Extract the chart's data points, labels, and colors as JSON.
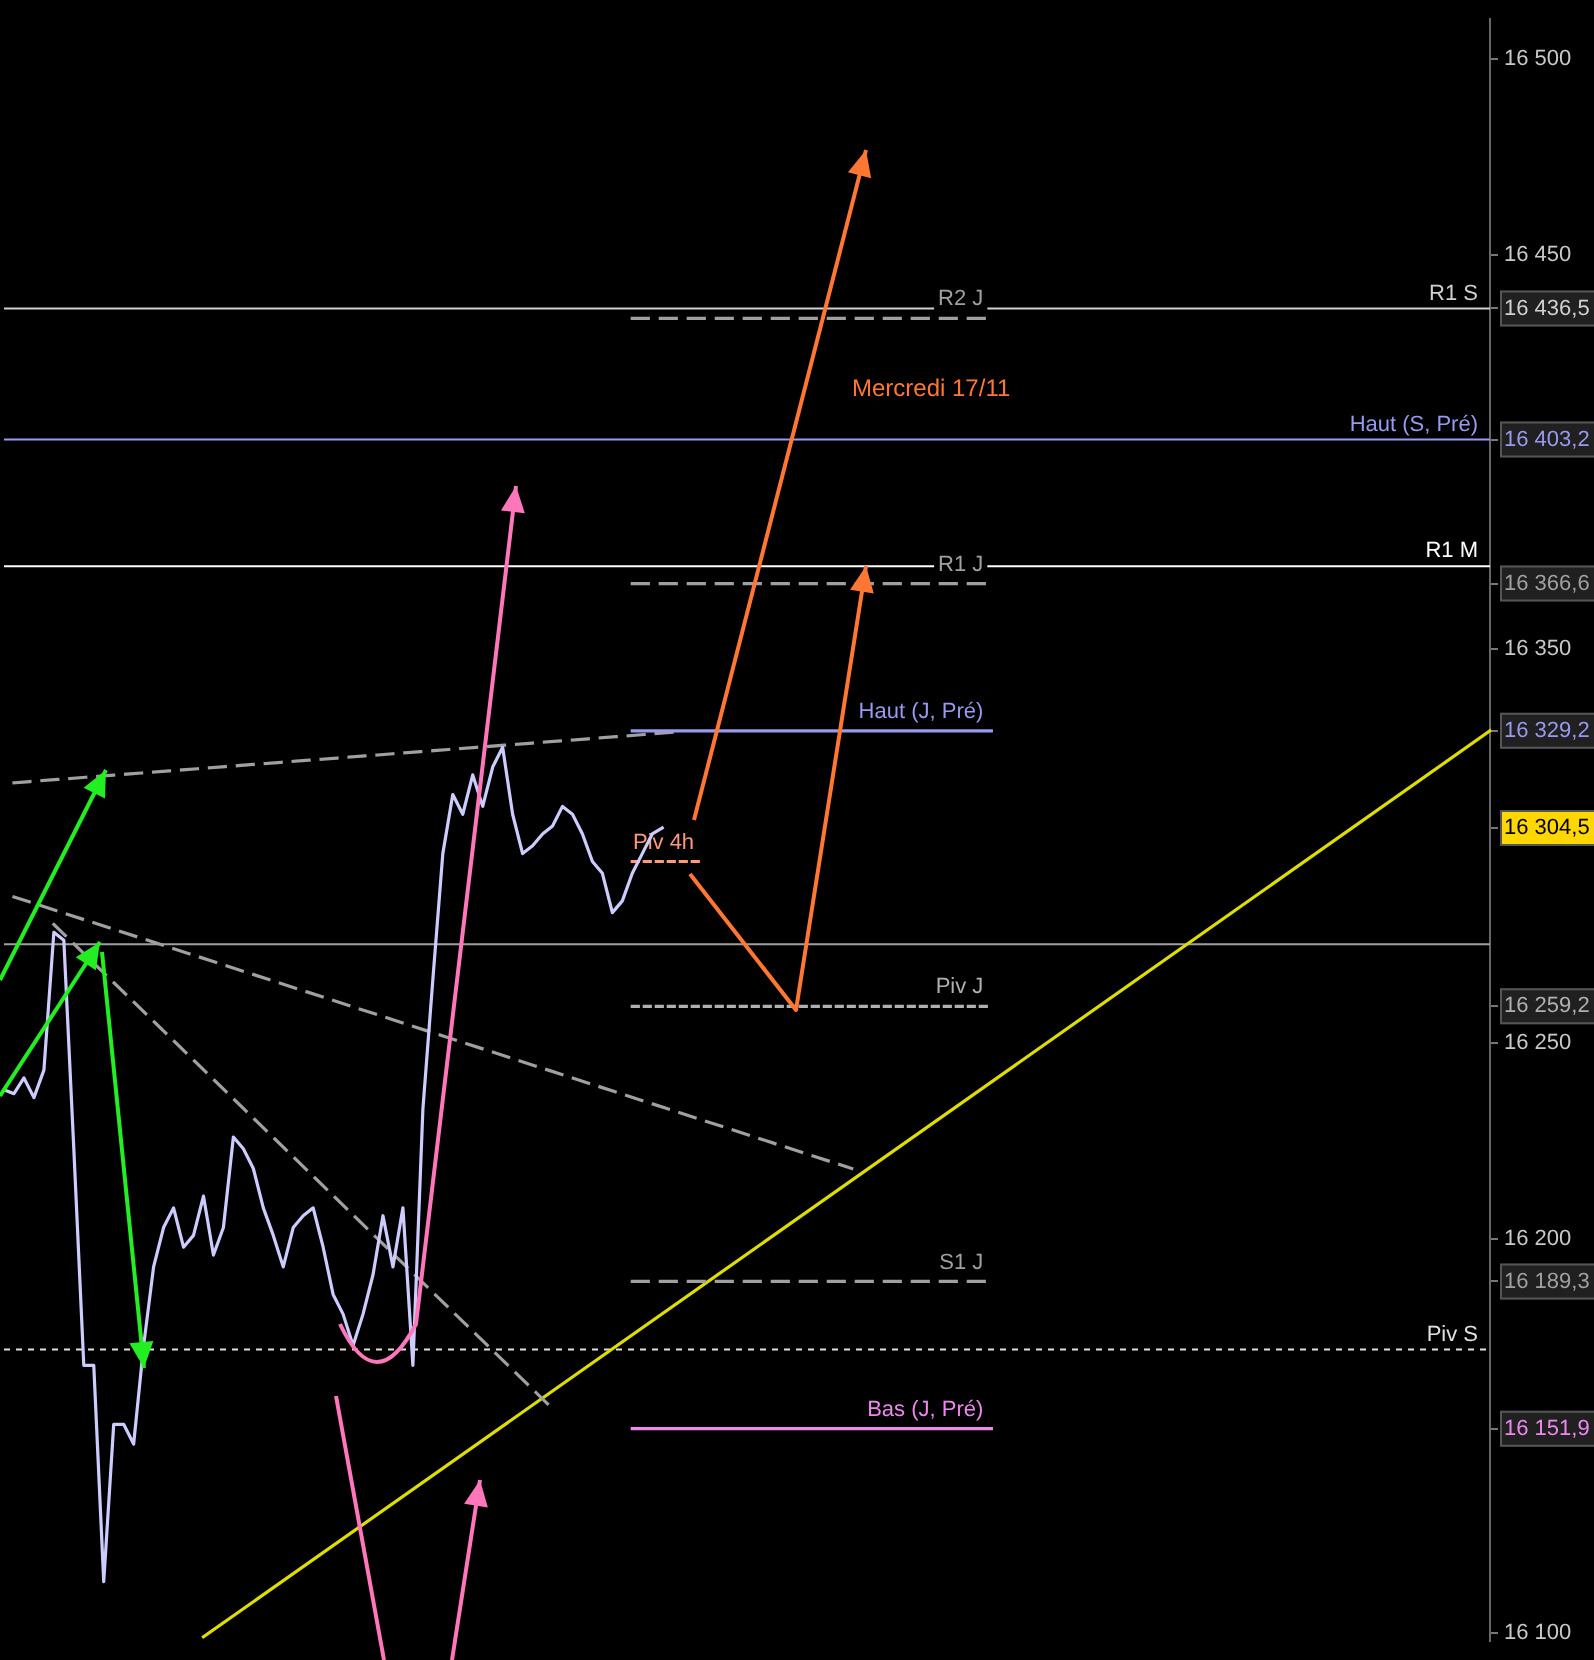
{
  "chart_data": {
    "type": "line",
    "categories": [
      null,
      null,
      null,
      null,
      null,
      null,
      null,
      null,
      null,
      null,
      null,
      null,
      null,
      null,
      null,
      null,
      null,
      null,
      null,
      null,
      null,
      null,
      null,
      null,
      null,
      null,
      null,
      null,
      null,
      null,
      null,
      null,
      null,
      null,
      null,
      null,
      null,
      null,
      null,
      null,
      null,
      null,
      null,
      null,
      null,
      null,
      null,
      null,
      null,
      null,
      null,
      null,
      null,
      null,
      null,
      null,
      null,
      null,
      null,
      null,
      null,
      null,
      null,
      null,
      null,
      null,
      null,
      null,
      null,
      null,
      null,
      null,
      null,
      null,
      null,
      null,
      null,
      null,
      null,
      null,
      null,
      null,
      null,
      null,
      null,
      null,
      null,
      null,
      null,
      null,
      null,
      null,
      null,
      null,
      null,
      null,
      null,
      null,
      null,
      null,
      null,
      null,
      null,
      null,
      null,
      null,
      null,
      null,
      null,
      null,
      null,
      null,
      null,
      null,
      null,
      null,
      null,
      null,
      null,
      null,
      null,
      null,
      null,
      null,
      null,
      null,
      null,
      null,
      null,
      null,
      null,
      null,
      null,
      null,
      null,
      null,
      null,
      null,
      null,
      null,
      null,
      null,
      null,
      null,
      null,
      null,
      null,
      null,
      null,
      null
    ],
    "ylim": [
      16098,
      16510
    ],
    "yticks": [
      {
        "value": 16100,
        "label": "16 100"
      },
      {
        "value": 16151.9,
        "label": "16 151,9"
      },
      {
        "value": 16189.3,
        "label": "16 189,3"
      },
      {
        "value": 16200,
        "label": "16 200"
      },
      {
        "value": 16250,
        "label": "16 250"
      },
      {
        "value": 16259.2,
        "label": "16 259,2"
      },
      {
        "value": 16304.5,
        "label": "16 304,5"
      },
      {
        "value": 16329.2,
        "label": "16 329,2"
      },
      {
        "value": 16350,
        "label": "16 350"
      },
      {
        "value": 16366.6,
        "label": "16 366,6"
      },
      {
        "value": 16403.2,
        "label": "16 403,2"
      },
      {
        "value": 16436.5,
        "label": "16 436,5"
      },
      {
        "value": 16450,
        "label": "16 450"
      },
      {
        "value": 16500,
        "label": "16 500"
      }
    ],
    "tick_labels": "y",
    "grid": false,
    "legend": false,
    "marker": "none",
    "annotations": [
      "Mercredi 17/11"
    ],
    "ref_lines": [
      {
        "axis": "y",
        "value": 16436.5,
        "label": "R1 S",
        "color": "#d0d0d0"
      },
      {
        "axis": "y",
        "value": 16403.2,
        "label": "Haut (S, Pré)",
        "color": "#9999ee"
      },
      {
        "axis": "y",
        "value": 16371,
        "label": "R1 M",
        "color": "#ffffff"
      },
      {
        "axis": "y",
        "value": 16275,
        "label": null,
        "color": "#a0a0a0"
      },
      {
        "axis": "y",
        "value": 16172,
        "label": "Piv S",
        "color": "#e0e0e0",
        "line_style": "dotted"
      }
    ],
    "series": [
      {
        "color": "#ccccff",
        "line_style": "solid",
        "values": [
          16238,
          16237,
          16241,
          16236,
          16243,
          16278,
          16276,
          16223,
          16168,
          16168,
          16113,
          16153,
          16153,
          16148,
          16173,
          16193,
          16203,
          16208,
          16198,
          16201,
          16211,
          16196,
          16203,
          16226,
          16223,
          16218,
          16208,
          16201,
          16193,
          16203,
          16206,
          16208,
          16198,
          16186,
          16181,
          16173,
          16181,
          16191,
          16206,
          16193,
          16208,
          16168,
          16233,
          16266,
          16298,
          16313,
          16308,
          16318,
          16310,
          16320,
          16325,
          16308,
          16298,
          16300,
          16303,
          16305,
          16310,
          16308,
          16303,
          16296,
          16293,
          16283,
          16286,
          16293,
          16298,
          16303,
          16304.5,
          null,
          null,
          null,
          null,
          null,
          null,
          null,
          null,
          null,
          null,
          null,
          null,
          null,
          null,
          null,
          null,
          null,
          null,
          null,
          null,
          null,
          null,
          null,
          null,
          null,
          null,
          null,
          null,
          null,
          null,
          null,
          null,
          null,
          null,
          null,
          null,
          null,
          null,
          null,
          null,
          null,
          null,
          null,
          null,
          null,
          null,
          null,
          null,
          null,
          null,
          null,
          null,
          null,
          null,
          null,
          null,
          null,
          null,
          null,
          null,
          null,
          null,
          null,
          null,
          null,
          null,
          null,
          null,
          null,
          null,
          null,
          null,
          null,
          null,
          null,
          null,
          null,
          null,
          null,
          null,
          null,
          null,
          null
        ]
      },
      {
        "name": "R2 J",
        "color": "#a0a0a0",
        "line_style": "dashed",
        "values": [
          null,
          null,
          null,
          null,
          null,
          null,
          null,
          null,
          null,
          null,
          null,
          null,
          null,
          null,
          null,
          null,
          null,
          null,
          null,
          null,
          null,
          null,
          null,
          null,
          null,
          null,
          null,
          null,
          null,
          null,
          null,
          null,
          null,
          null,
          null,
          null,
          null,
          null,
          null,
          null,
          null,
          null,
          null,
          null,
          null,
          null,
          null,
          null,
          null,
          null,
          null,
          null,
          null,
          null,
          null,
          null,
          null,
          null,
          null,
          null,
          null,
          null,
          null,
          16434,
          null,
          null,
          null,
          null,
          null,
          null,
          null,
          null,
          null,
          null,
          null,
          null,
          null,
          null,
          null,
          null,
          null,
          null,
          null,
          null,
          null,
          null,
          null,
          null,
          null,
          null,
          null,
          null,
          null,
          null,
          null,
          null,
          null,
          null,
          null,
          16434,
          null,
          null,
          null,
          null,
          null,
          null,
          null,
          null,
          null,
          null,
          null,
          null,
          null,
          null,
          null,
          null,
          null,
          null,
          null,
          null,
          null,
          null,
          null,
          null,
          null,
          null,
          null,
          null,
          null,
          null,
          null,
          null,
          null,
          null,
          null,
          null,
          null,
          null,
          null,
          null,
          null,
          null,
          null,
          null,
          null,
          null,
          null,
          null,
          null,
          null
        ]
      },
      {
        "name": "R1 J",
        "color": "#a0a0a0",
        "line_style": "dashed",
        "values": [
          null,
          null,
          null,
          null,
          null,
          null,
          null,
          null,
          null,
          null,
          null,
          null,
          null,
          null,
          null,
          null,
          null,
          null,
          null,
          null,
          null,
          null,
          null,
          null,
          null,
          null,
          null,
          null,
          null,
          null,
          null,
          null,
          null,
          null,
          null,
          null,
          null,
          null,
          null,
          null,
          null,
          null,
          null,
          null,
          null,
          null,
          null,
          null,
          null,
          null,
          null,
          null,
          null,
          null,
          null,
          null,
          null,
          null,
          null,
          null,
          null,
          null,
          null,
          16366.6,
          null,
          null,
          null,
          null,
          null,
          null,
          null,
          null,
          null,
          null,
          null,
          null,
          null,
          null,
          null,
          null,
          null,
          null,
          null,
          null,
          null,
          null,
          null,
          null,
          null,
          null,
          null,
          null,
          null,
          null,
          null,
          null,
          null,
          null,
          null,
          16366.6,
          null,
          null,
          null,
          null,
          null,
          null,
          null,
          null,
          null,
          null,
          null,
          null,
          null,
          null,
          null,
          null,
          null,
          null,
          null,
          null,
          null,
          null,
          null,
          null,
          null,
          null,
          null,
          null,
          null,
          null,
          null,
          null,
          null,
          null,
          null,
          null,
          null,
          null,
          null,
          null,
          null,
          null,
          null,
          null,
          null,
          null,
          null,
          null,
          null,
          null
        ]
      },
      {
        "name": "Haut (J, Pré)",
        "color": "#9999ee",
        "line_style": "solid",
        "values": [
          null,
          null,
          null,
          null,
          null,
          null,
          null,
          null,
          null,
          null,
          null,
          null,
          null,
          null,
          null,
          null,
          null,
          null,
          null,
          null,
          null,
          null,
          null,
          null,
          null,
          null,
          null,
          null,
          null,
          null,
          null,
          null,
          null,
          null,
          null,
          null,
          null,
          null,
          null,
          null,
          null,
          null,
          null,
          null,
          null,
          null,
          null,
          null,
          null,
          null,
          null,
          null,
          null,
          null,
          null,
          null,
          null,
          null,
          null,
          null,
          null,
          null,
          null,
          16329.2,
          null,
          null,
          null,
          null,
          null,
          null,
          null,
          null,
          null,
          null,
          null,
          null,
          null,
          null,
          null,
          null,
          null,
          null,
          null,
          null,
          null,
          null,
          null,
          null,
          null,
          null,
          null,
          null,
          null,
          null,
          null,
          null,
          null,
          null,
          null,
          16329.2,
          null,
          null,
          null,
          null,
          null,
          null,
          null,
          null,
          null,
          null,
          null,
          null,
          null,
          null,
          null,
          null,
          null,
          null,
          null,
          null,
          null,
          null,
          null,
          null,
          null,
          null,
          null,
          null,
          null,
          null,
          null,
          null,
          null,
          null,
          null,
          null,
          null,
          null,
          null,
          null,
          null,
          null,
          null,
          null,
          null,
          null,
          null,
          null,
          null,
          null
        ]
      },
      {
        "name": "Piv J",
        "color": "#b0b0b0",
        "line_style": "dotted",
        "values": [
          null,
          null,
          null,
          null,
          null,
          null,
          null,
          null,
          null,
          null,
          null,
          null,
          null,
          null,
          null,
          null,
          null,
          null,
          null,
          null,
          null,
          null,
          null,
          null,
          null,
          null,
          null,
          null,
          null,
          null,
          null,
          null,
          null,
          null,
          null,
          null,
          null,
          null,
          null,
          null,
          null,
          null,
          null,
          null,
          null,
          null,
          null,
          null,
          null,
          null,
          null,
          null,
          null,
          null,
          null,
          null,
          null,
          null,
          null,
          null,
          null,
          null,
          null,
          16259.2,
          null,
          null,
          null,
          null,
          null,
          null,
          null,
          null,
          null,
          null,
          null,
          null,
          null,
          null,
          null,
          null,
          null,
          null,
          null,
          null,
          null,
          null,
          null,
          null,
          null,
          null,
          null,
          null,
          null,
          null,
          null,
          null,
          null,
          null,
          null,
          16259.2,
          null,
          null,
          null,
          null,
          null,
          null,
          null,
          null,
          null,
          null,
          null,
          null,
          null,
          null,
          null,
          null,
          null,
          null,
          null,
          null,
          null,
          null,
          null,
          null,
          null,
          null,
          null,
          null,
          null,
          null,
          null,
          null,
          null,
          null,
          null,
          null,
          null,
          null,
          null,
          null,
          null,
          null,
          null,
          null,
          null,
          null,
          null,
          null,
          null,
          null
        ]
      },
      {
        "name": "S1 J",
        "color": "#a0a0a0",
        "line_style": "dashed",
        "values": [
          null,
          null,
          null,
          null,
          null,
          null,
          null,
          null,
          null,
          null,
          null,
          null,
          null,
          null,
          null,
          null,
          null,
          null,
          null,
          null,
          null,
          null,
          null,
          null,
          null,
          null,
          null,
          null,
          null,
          null,
          null,
          null,
          null,
          null,
          null,
          null,
          null,
          null,
          null,
          null,
          null,
          null,
          null,
          null,
          null,
          null,
          null,
          null,
          null,
          null,
          null,
          null,
          null,
          null,
          null,
          null,
          null,
          null,
          null,
          null,
          null,
          null,
          null,
          16189.3,
          null,
          null,
          null,
          null,
          null,
          null,
          null,
          null,
          null,
          null,
          null,
          null,
          null,
          null,
          null,
          null,
          null,
          null,
          null,
          null,
          null,
          null,
          null,
          null,
          null,
          null,
          null,
          null,
          null,
          null,
          null,
          null,
          null,
          null,
          null,
          16189.3,
          null,
          null,
          null,
          null,
          null,
          null,
          null,
          null,
          null,
          null,
          null,
          null,
          null,
          null,
          null,
          null,
          null,
          null,
          null,
          null,
          null,
          null,
          null,
          null,
          null,
          null,
          null,
          null,
          null,
          null,
          null,
          null,
          null,
          null,
          null,
          null,
          null,
          null,
          null,
          null,
          null,
          null,
          null,
          null,
          null,
          null,
          null,
          null,
          null,
          null
        ]
      },
      {
        "name": "Bas (J, Pré)",
        "color": "#ee88ee",
        "line_style": "solid",
        "values": [
          null,
          null,
          null,
          null,
          null,
          null,
          null,
          null,
          null,
          null,
          null,
          null,
          null,
          null,
          null,
          null,
          null,
          null,
          null,
          null,
          null,
          null,
          null,
          null,
          null,
          null,
          null,
          null,
          null,
          null,
          null,
          null,
          null,
          null,
          null,
          null,
          null,
          null,
          null,
          null,
          null,
          null,
          null,
          null,
          null,
          null,
          null,
          null,
          null,
          null,
          null,
          null,
          null,
          null,
          null,
          null,
          null,
          null,
          null,
          null,
          null,
          null,
          null,
          16151.9,
          null,
          null,
          null,
          null,
          null,
          null,
          null,
          null,
          null,
          null,
          null,
          null,
          null,
          null,
          null,
          null,
          null,
          null,
          null,
          null,
          null,
          null,
          null,
          null,
          null,
          null,
          null,
          null,
          null,
          null,
          null,
          null,
          null,
          null,
          null,
          16151.9,
          null,
          null,
          null,
          null,
          null,
          null,
          null,
          null,
          null,
          null,
          null,
          null,
          null,
          null,
          null,
          null,
          null,
          null,
          null,
          null,
          null,
          null,
          null,
          null,
          null,
          null,
          null,
          null,
          null,
          null,
          null,
          null,
          null,
          null,
          null,
          null,
          null,
          null,
          null,
          null,
          null,
          null,
          null,
          null,
          null,
          null,
          null,
          null,
          null,
          null
        ]
      },
      {
        "name": "Piv 4h",
        "color": "#ff9977",
        "line_style": "dotted",
        "values": [
          null,
          null,
          null,
          null,
          null,
          null,
          null,
          null,
          null,
          null,
          null,
          null,
          null,
          null,
          null,
          null,
          null,
          null,
          null,
          null,
          null,
          null,
          null,
          null,
          null,
          null,
          null,
          null,
          null,
          null,
          null,
          null,
          null,
          null,
          null,
          null,
          null,
          null,
          null,
          null,
          null,
          null,
          null,
          null,
          null,
          null,
          null,
          null,
          null,
          null,
          null,
          null,
          null,
          null,
          null,
          null,
          null,
          null,
          null,
          null,
          null,
          null,
          null,
          16296,
          null,
          null,
          null,
          null,
          null,
          null,
          16296,
          null,
          null,
          null,
          null,
          null,
          null,
          null,
          null,
          null,
          null,
          null,
          null,
          null,
          null,
          null,
          null,
          null,
          null,
          null,
          null,
          null,
          null,
          null,
          null,
          null,
          null,
          null,
          null,
          null,
          null,
          null,
          null,
          null,
          null,
          null,
          null,
          null,
          null,
          null,
          null,
          null,
          null,
          null,
          null,
          null,
          null,
          null,
          null,
          null,
          null,
          null,
          null,
          null,
          null,
          null,
          null,
          null,
          null,
          null,
          null,
          null,
          null,
          null,
          null,
          null,
          null,
          null,
          null,
          null,
          null,
          null,
          null,
          null,
          null,
          null,
          null,
          null,
          null,
          null
        ]
      },
      {
        "color": "#a0a0a0",
        "line_style": "dashed",
        "values": [
          null,
          16316,
          null,
          null,
          null,
          null,
          null,
          null,
          null,
          null,
          null,
          null,
          null,
          null,
          null,
          null,
          null,
          null,
          null,
          null,
          null,
          null,
          null,
          null,
          null,
          null,
          null,
          null,
          null,
          null,
          null,
          null,
          null,
          null,
          null,
          null,
          null,
          null,
          null,
          null,
          null,
          null,
          null,
          null,
          null,
          null,
          null,
          null,
          null,
          null,
          null,
          null,
          null,
          null,
          null,
          null,
          null,
          null,
          null,
          null,
          null,
          null,
          null,
          null,
          null,
          null,
          null,
          null,
          16329,
          null,
          null,
          null,
          null,
          null,
          null,
          null,
          null,
          null,
          null,
          null,
          null,
          null,
          null,
          null,
          null,
          null,
          null,
          null,
          null,
          null,
          null,
          null,
          null,
          null,
          null,
          null,
          null,
          null,
          null,
          null,
          null,
          null,
          null,
          null,
          null,
          null,
          null,
          null,
          null,
          null,
          null,
          null,
          null,
          null,
          null,
          null,
          null,
          null,
          null,
          null,
          null,
          null,
          null,
          null,
          null,
          null,
          null,
          null,
          null,
          null,
          null,
          null,
          null,
          null,
          null,
          null,
          null,
          null,
          null,
          null,
          null,
          null,
          null,
          null,
          null,
          null,
          null,
          null,
          null,
          null
        ]
      },
      {
        "color": "#a0a0a0",
        "line_style": "dashed",
        "values": [
          null,
          16287,
          null,
          null,
          null,
          null,
          null,
          null,
          null,
          null,
          null,
          null,
          null,
          null,
          null,
          null,
          null,
          null,
          null,
          null,
          null,
          null,
          null,
          null,
          null,
          null,
          null,
          null,
          null,
          null,
          null,
          null,
          null,
          null,
          null,
          null,
          null,
          null,
          null,
          null,
          null,
          null,
          null,
          null,
          null,
          null,
          null,
          null,
          null,
          null,
          null,
          null,
          null,
          null,
          null,
          null,
          null,
          null,
          null,
          null,
          null,
          null,
          null,
          null,
          null,
          null,
          null,
          null,
          null,
          null,
          null,
          null,
          null,
          null,
          null,
          null,
          null,
          null,
          null,
          null,
          null,
          null,
          null,
          null,
          null,
          16218,
          null,
          null,
          null,
          null,
          null,
          null,
          null,
          null,
          null,
          null,
          null,
          null,
          null,
          null,
          null,
          null,
          null,
          null,
          null,
          null,
          null,
          null,
          null,
          null,
          null,
          null,
          null,
          null,
          null,
          null,
          null,
          null,
          null,
          null,
          null,
          null,
          null,
          null,
          null,
          null,
          null,
          null,
          null,
          null,
          null,
          null,
          null,
          null,
          null,
          null,
          null,
          null,
          null,
          null,
          null,
          null,
          null,
          null,
          null,
          null,
          null,
          null,
          null,
          null
        ]
      },
      {
        "color": "#a0a0a0",
        "line_style": "dashed",
        "values": [
          null,
          null,
          null,
          null,
          null,
          16280,
          null,
          null,
          null,
          null,
          null,
          null,
          null,
          null,
          null,
          null,
          null,
          null,
          null,
          null,
          null,
          null,
          null,
          null,
          null,
          null,
          null,
          null,
          null,
          null,
          null,
          null,
          null,
          null,
          null,
          null,
          null,
          null,
          null,
          null,
          null,
          null,
          null,
          null,
          null,
          null,
          null,
          null,
          null,
          null,
          null,
          null,
          null,
          null,
          null,
          16157,
          null,
          null,
          null,
          null,
          null,
          null,
          null,
          null,
          null,
          null,
          null,
          null,
          null,
          null,
          null,
          null,
          null,
          null,
          null,
          null,
          null,
          null,
          null,
          null,
          null,
          null,
          null,
          null,
          null,
          null,
          null,
          null,
          null,
          null,
          null,
          null,
          null,
          null,
          null,
          null,
          null,
          null,
          null,
          null,
          null,
          null,
          null,
          null,
          null,
          null,
          null,
          null,
          null,
          null,
          null,
          null,
          null,
          null,
          null,
          null,
          null,
          null,
          null,
          null,
          null,
          null,
          null,
          null,
          null,
          null,
          null,
          null,
          null,
          null,
          null,
          null,
          null,
          null,
          null,
          null,
          null,
          null,
          null,
          null,
          null,
          null,
          null,
          null,
          null,
          null,
          null,
          null,
          null,
          null
        ]
      },
      {
        "color": "#dddd00",
        "line_style": "solid",
        "values": [
          null,
          null,
          null,
          null,
          null,
          null,
          null,
          null,
          null,
          null,
          null,
          null,
          null,
          null,
          null,
          null,
          null,
          null,
          null,
          null,
          16099,
          null,
          null,
          null,
          null,
          null,
          null,
          null,
          null,
          null,
          null,
          null,
          null,
          null,
          null,
          null,
          null,
          null,
          null,
          null,
          null,
          null,
          null,
          null,
          null,
          null,
          null,
          null,
          null,
          null,
          null,
          null,
          null,
          null,
          null,
          null,
          null,
          null,
          null,
          null,
          null,
          null,
          null,
          null,
          null,
          null,
          null,
          null,
          null,
          null,
          null,
          null,
          null,
          null,
          null,
          null,
          null,
          null,
          null,
          null,
          null,
          null,
          null,
          null,
          null,
          null,
          null,
          null,
          null,
          null,
          null,
          null,
          null,
          null,
          null,
          null,
          null,
          null,
          null,
          null,
          null,
          null,
          null,
          null,
          null,
          null,
          null,
          null,
          null,
          null,
          null,
          null,
          null,
          null,
          null,
          null,
          null,
          null,
          null,
          null,
          null,
          null,
          null,
          null,
          null,
          null,
          null,
          null,
          null,
          null,
          null,
          null,
          null,
          null,
          null,
          null,
          null,
          null,
          null,
          null,
          null,
          null,
          null,
          null,
          null,
          null,
          null,
          null,
          null,
          16329.2
        ]
      }
    ]
  }
}
